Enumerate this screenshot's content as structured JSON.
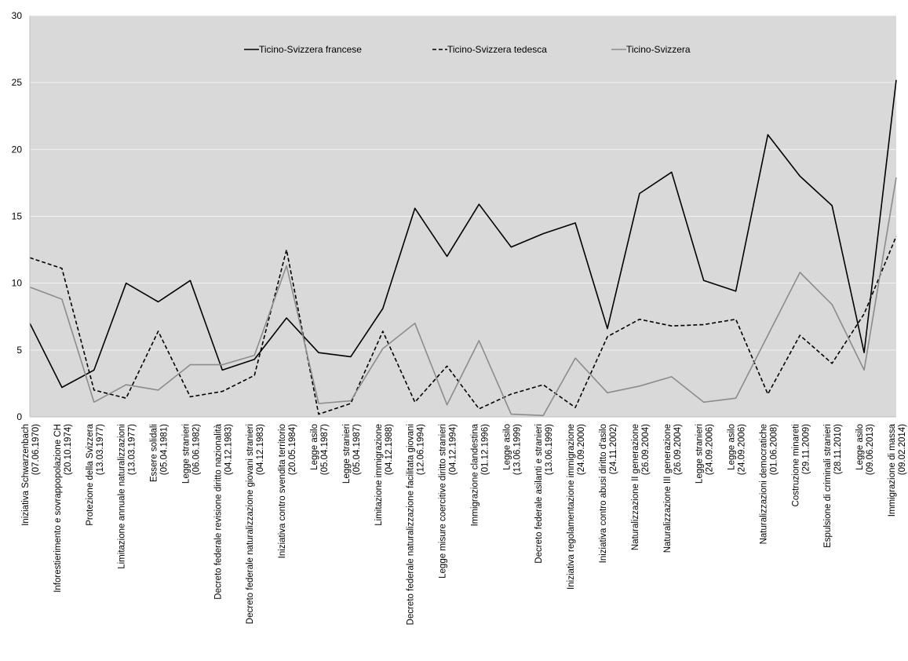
{
  "chart_data": {
    "type": "line",
    "ylim": [
      0,
      30
    ],
    "yticks": [
      "0",
      "5",
      "10",
      "15",
      "20",
      "25",
      "30"
    ],
    "grid": true,
    "legend_position": "top",
    "colors": {
      "plot_bg": "#d9d9d9",
      "grid": "#f2f2f2",
      "series_1": "#000000",
      "series_2": "#000000",
      "series_3": "#8c8c8c"
    },
    "categories": [
      [
        "Iniziativa Schwarzenbach",
        "(07.06.1970)"
      ],
      [
        "Inforestierimento e sovrappopolazione CH",
        "(20.10.1974)"
      ],
      [
        "Protezione della Svizzera",
        "(13.03.1977)"
      ],
      [
        "Limitazione annuale naturalizzazioni",
        "(13.03.1977)"
      ],
      [
        "Essere solidali",
        "(05.04.1981)"
      ],
      [
        "Legge stranieri",
        "(06.06.1982)"
      ],
      [
        "Decreto federale revisione diritto nazionalità",
        "(04.12.1983)"
      ],
      [
        "Decreto federale naturalizzazione giovani stranieri",
        "(04.12.1983)"
      ],
      [
        "Iniziativa contro svendita territorio",
        "(20.05.1984)"
      ],
      [
        "Legge asilo",
        "(05.04.1987)"
      ],
      [
        "Legge stranieri",
        "(05.04.1987)"
      ],
      [
        "Limitazione immigrazione",
        "(04.12.1988)"
      ],
      [
        "Decreto federale naturalizzazione facilitata giovani",
        "(12.06.1994)"
      ],
      [
        "Legge misure coercitive diritto stranieri",
        "(04.12.1994)"
      ],
      [
        "Immigrazione clandestina",
        "(01.12.1996)"
      ],
      [
        "Legge asilo",
        "(13.06.1999)"
      ],
      [
        "Decreto federale asilanti e stranieri",
        "(13.06.1999)"
      ],
      [
        "Iniziativa regolamentazione immigrazione",
        "(24.09.2000)"
      ],
      [
        "Iniziativa contro abusi diritto d'asilo",
        "(24.11.2002)"
      ],
      [
        "Naturalizzazione II generazione",
        "(26.09.2004)"
      ],
      [
        "Naturalizzazione III generazione",
        "(26.09.2004)"
      ],
      [
        "Legge stranieri",
        "(24.09.2006)"
      ],
      [
        "Legge asilo",
        "(24.09.2006)"
      ],
      [
        "Naturalizzazioni democratiche",
        "(01.06.2008)"
      ],
      [
        "Costruzione minareti",
        "(29.11.2009)"
      ],
      [
        "Espulsione di criminali stranieri",
        "(28.11.2010)"
      ],
      [
        "Legge asilo",
        "(09.06.2013)"
      ],
      [
        "Immigrazione di massa",
        "(09.02.2014)"
      ]
    ],
    "series": [
      {
        "name": "Ticino-Svizzera francese",
        "style": "solid",
        "color": "#000000",
        "values": [
          7.0,
          2.2,
          3.5,
          10.0,
          8.6,
          10.2,
          3.5,
          4.3,
          7.4,
          4.8,
          4.5,
          8.1,
          15.6,
          12.0,
          15.9,
          12.7,
          13.7,
          14.5,
          6.6,
          16.7,
          18.3,
          10.2,
          9.4,
          21.1,
          18.0,
          15.8,
          4.8,
          25.2
        ]
      },
      {
        "name": "Ticino-Svizzera tedesca",
        "style": "dashed",
        "color": "#000000",
        "values": [
          11.9,
          11.1,
          2.0,
          1.4,
          6.4,
          1.5,
          1.9,
          3.1,
          12.5,
          0.2,
          1.0,
          6.4,
          1.1,
          3.8,
          0.6,
          1.7,
          2.4,
          0.7,
          6.0,
          7.3,
          6.8,
          6.9,
          7.3,
          1.7,
          6.1,
          4.0,
          7.7,
          13.5
        ]
      },
      {
        "name": "Ticino-Svizzera",
        "style": "solid",
        "color": "#8c8c8c",
        "values": [
          9.7,
          8.8,
          1.1,
          2.4,
          2.0,
          3.9,
          3.9,
          4.6,
          11.3,
          1.0,
          1.2,
          5.1,
          7.0,
          0.9,
          5.7,
          0.2,
          0.1,
          4.4,
          1.8,
          2.3,
          3.0,
          1.1,
          1.4,
          6.1,
          10.8,
          8.4,
          3.5,
          17.9
        ]
      }
    ]
  }
}
